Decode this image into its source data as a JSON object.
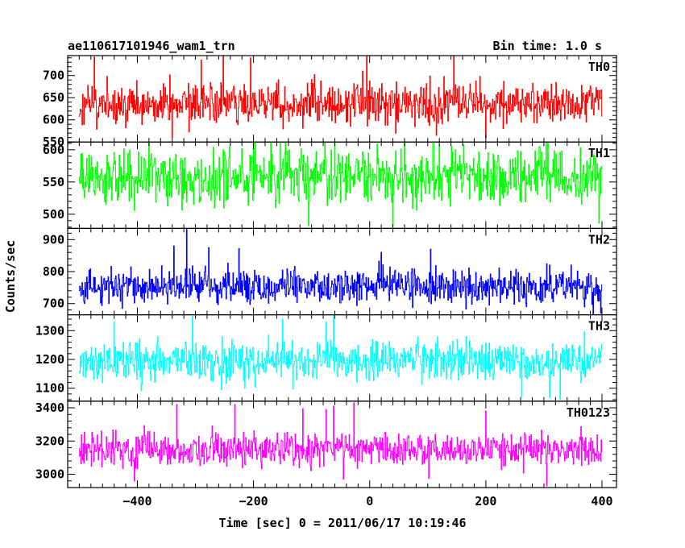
{
  "chart_data": {
    "type": "line",
    "title": "ae110617101946_wam1_trn",
    "subtitle": "Bin time: 1.0 s",
    "xlabel": "Time [sec] 0 = 2011/06/17 10:19:46",
    "ylabel": "Counts/sec",
    "xlim": [
      -520,
      425
    ],
    "x_range": [
      -500,
      400
    ],
    "x_step": 1,
    "xticks": [
      -400,
      -200,
      0,
      200,
      400
    ],
    "xtick_labels": [
      "−400",
      "−200",
      "0",
      "200",
      "400"
    ],
    "grid": false,
    "series": [
      {
        "name": "TH0",
        "color": "#ff0000",
        "mean": 635,
        "spread": 28,
        "ylim": [
          550,
          745
        ],
        "yticks": [
          550,
          600,
          650,
          700
        ],
        "ytick_labels": [
          "550",
          "600",
          "650",
          "700"
        ],
        "spikes": [
          [
            -474,
            742
          ],
          [
            -290,
            735
          ],
          [
            -252,
            745
          ],
          [
            -205,
            740
          ],
          [
            -5,
            745
          ],
          [
            -12,
            710
          ],
          [
            145,
            745
          ],
          [
            -340,
            560
          ],
          [
            45,
            570
          ],
          [
            115,
            565
          ],
          [
            200,
            560
          ]
        ]
      },
      {
        "name": "TH1",
        "color": "#00ff00",
        "mean": 558,
        "spread": 25,
        "ylim": [
          478,
          612
        ],
        "yticks": [
          500,
          550,
          600
        ],
        "ytick_labels": [
          "500",
          "550",
          "600"
        ],
        "spikes": [
          [
            -380,
            610
          ],
          [
            -200,
            612
          ],
          [
            -170,
            612
          ],
          [
            -145,
            612
          ],
          [
            -60,
            611
          ],
          [
            60,
            610
          ],
          [
            110,
            610
          ],
          [
            40,
            482
          ],
          [
            -105,
            482
          ],
          [
            395,
            486
          ]
        ]
      },
      {
        "name": "TH2",
        "color": "#0000ff",
        "mean": 755,
        "spread": 32,
        "ylim": [
          665,
          935
        ],
        "yticks": [
          700,
          800,
          900
        ],
        "ytick_labels": [
          "700",
          "800",
          "900"
        ],
        "spikes": [
          [
            -315,
            935
          ],
          [
            -337,
            880
          ],
          [
            -277,
            875
          ],
          [
            -225,
            872
          ],
          [
            20,
            860
          ],
          [
            105,
            870
          ],
          [
            270,
            690
          ],
          [
            385,
            668
          ],
          [
            398,
            670
          ]
        ]
      },
      {
        "name": "TH3",
        "color": "#00ffff",
        "mean": 1195,
        "spread": 40,
        "ylim": [
          1055,
          1355
        ],
        "yticks": [
          1100,
          1200,
          1300
        ],
        "ytick_labels": [
          "1100",
          "1200",
          "1300"
        ],
        "spikes": [
          [
            -440,
            1330
          ],
          [
            -305,
            1350
          ],
          [
            -75,
            1330
          ],
          [
            -62,
            1355
          ],
          [
            -150,
            1340
          ],
          [
            -393,
            1090
          ],
          [
            -255,
            1095
          ],
          [
            262,
            1070
          ],
          [
            310,
            1068
          ],
          [
            328,
            1062
          ]
        ]
      },
      {
        "name": "TH0123",
        "color": "#ff00ff",
        "mean": 3150,
        "spread": 60,
        "ylim": [
          2920,
          3440
        ],
        "yticks": [
          3000,
          3200,
          3400
        ],
        "ytick_labels": [
          "3000",
          "3200",
          "3400"
        ],
        "spikes": [
          [
            -332,
            3420
          ],
          [
            -232,
            3420
          ],
          [
            -115,
            3395
          ],
          [
            -75,
            3390
          ],
          [
            -62,
            3410
          ],
          [
            -27,
            3430
          ],
          [
            200,
            3380
          ],
          [
            -405,
            2960
          ],
          [
            -45,
            2970
          ],
          [
            102,
            2975
          ],
          [
            305,
            2930
          ]
        ]
      }
    ]
  }
}
